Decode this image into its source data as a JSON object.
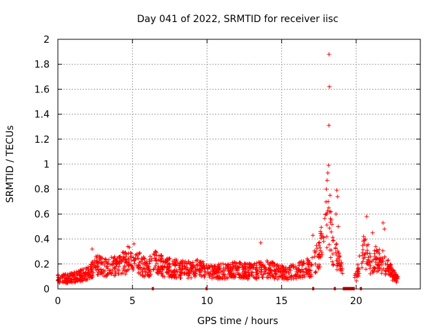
{
  "chart_data": {
    "type": "scatter",
    "title": "Day 041 of 2022, SRMTID for receiver iisc",
    "xlabel": "GPS time / hours",
    "ylabel": "SRMTID / TECUs",
    "xlim": [
      0,
      24.3
    ],
    "ylim": [
      0,
      2
    ],
    "x_ticks": [
      0,
      5,
      10,
      15,
      20
    ],
    "x_tick_labels": [
      "0",
      "5",
      "10",
      "15",
      "20"
    ],
    "y_ticks": [
      0,
      0.2,
      0.4,
      0.6,
      0.8,
      1,
      1.2,
      1.4,
      1.6,
      1.8,
      2
    ],
    "y_tick_labels": [
      "0",
      "0.2",
      "0.4",
      "0.6",
      "0.8",
      "1",
      "1.2",
      "1.4",
      "1.6",
      "1.8",
      "2"
    ],
    "grid": true,
    "marker": "plus",
    "color": "#ff0000",
    "x_range_data": [
      0,
      22.8
    ],
    "baseline": [
      [
        0,
        0.08
      ],
      [
        1,
        0.09
      ],
      [
        2,
        0.12
      ],
      [
        2.5,
        0.2
      ],
      [
        3,
        0.17
      ],
      [
        4,
        0.18
      ],
      [
        4.6,
        0.22
      ],
      [
        5,
        0.24
      ],
      [
        5.5,
        0.2
      ],
      [
        6,
        0.16
      ],
      [
        6.5,
        0.22
      ],
      [
        7,
        0.18
      ],
      [
        8,
        0.16
      ],
      [
        9,
        0.15
      ],
      [
        9.5,
        0.2
      ],
      [
        10,
        0.13
      ],
      [
        11,
        0.14
      ],
      [
        12,
        0.15
      ],
      [
        13,
        0.14
      ],
      [
        14,
        0.16
      ],
      [
        15,
        0.13
      ],
      [
        16,
        0.14
      ],
      [
        17,
        0.18
      ],
      [
        17.5,
        0.28
      ],
      [
        17.8,
        0.4
      ],
      [
        18,
        0.55
      ],
      [
        18.3,
        0.4
      ],
      [
        18.6,
        0.28
      ],
      [
        19,
        0.16
      ],
      [
        20,
        0.08
      ],
      [
        20.3,
        0.25
      ],
      [
        20.6,
        0.3
      ],
      [
        21,
        0.2
      ],
      [
        21.5,
        0.26
      ],
      [
        22,
        0.18
      ],
      [
        22.8,
        0.07
      ]
    ],
    "peaks": [
      {
        "x": 18.18,
        "y": 1.88
      },
      {
        "x": 18.2,
        "y": 1.62
      },
      {
        "x": 18.17,
        "y": 1.31
      },
      {
        "x": 18.15,
        "y": 0.99
      },
      {
        "x": 18.1,
        "y": 0.93
      },
      {
        "x": 18.05,
        "y": 0.87
      },
      {
        "x": 18.0,
        "y": 0.8
      },
      {
        "x": 18.25,
        "y": 0.75
      },
      {
        "x": 18.12,
        "y": 0.7
      },
      {
        "x": 18.3,
        "y": 0.62
      },
      {
        "x": 18.7,
        "y": 0.79
      },
      {
        "x": 18.75,
        "y": 0.74
      },
      {
        "x": 18.65,
        "y": 0.6
      },
      {
        "x": 18.8,
        "y": 0.5
      },
      {
        "x": 20.7,
        "y": 0.58
      },
      {
        "x": 21.8,
        "y": 0.53
      },
      {
        "x": 21.1,
        "y": 0.45
      },
      {
        "x": 20.5,
        "y": 0.42
      },
      {
        "x": 21.9,
        "y": 0.48
      },
      {
        "x": 13.6,
        "y": 0.37
      },
      {
        "x": 5.1,
        "y": 0.36
      },
      {
        "x": 2.3,
        "y": 0.32
      },
      {
        "x": 4.7,
        "y": 0.34
      },
      {
        "x": 17.1,
        "y": 0.43
      },
      {
        "x": 17.6,
        "y": 0.46
      }
    ],
    "outage_segments": [
      [
        6.3,
        6.4
      ],
      [
        9.9,
        9.95
      ],
      [
        17.05,
        17.15
      ],
      [
        18.5,
        18.6
      ],
      [
        19.1,
        19.9
      ],
      [
        20.25,
        20.35
      ]
    ]
  }
}
